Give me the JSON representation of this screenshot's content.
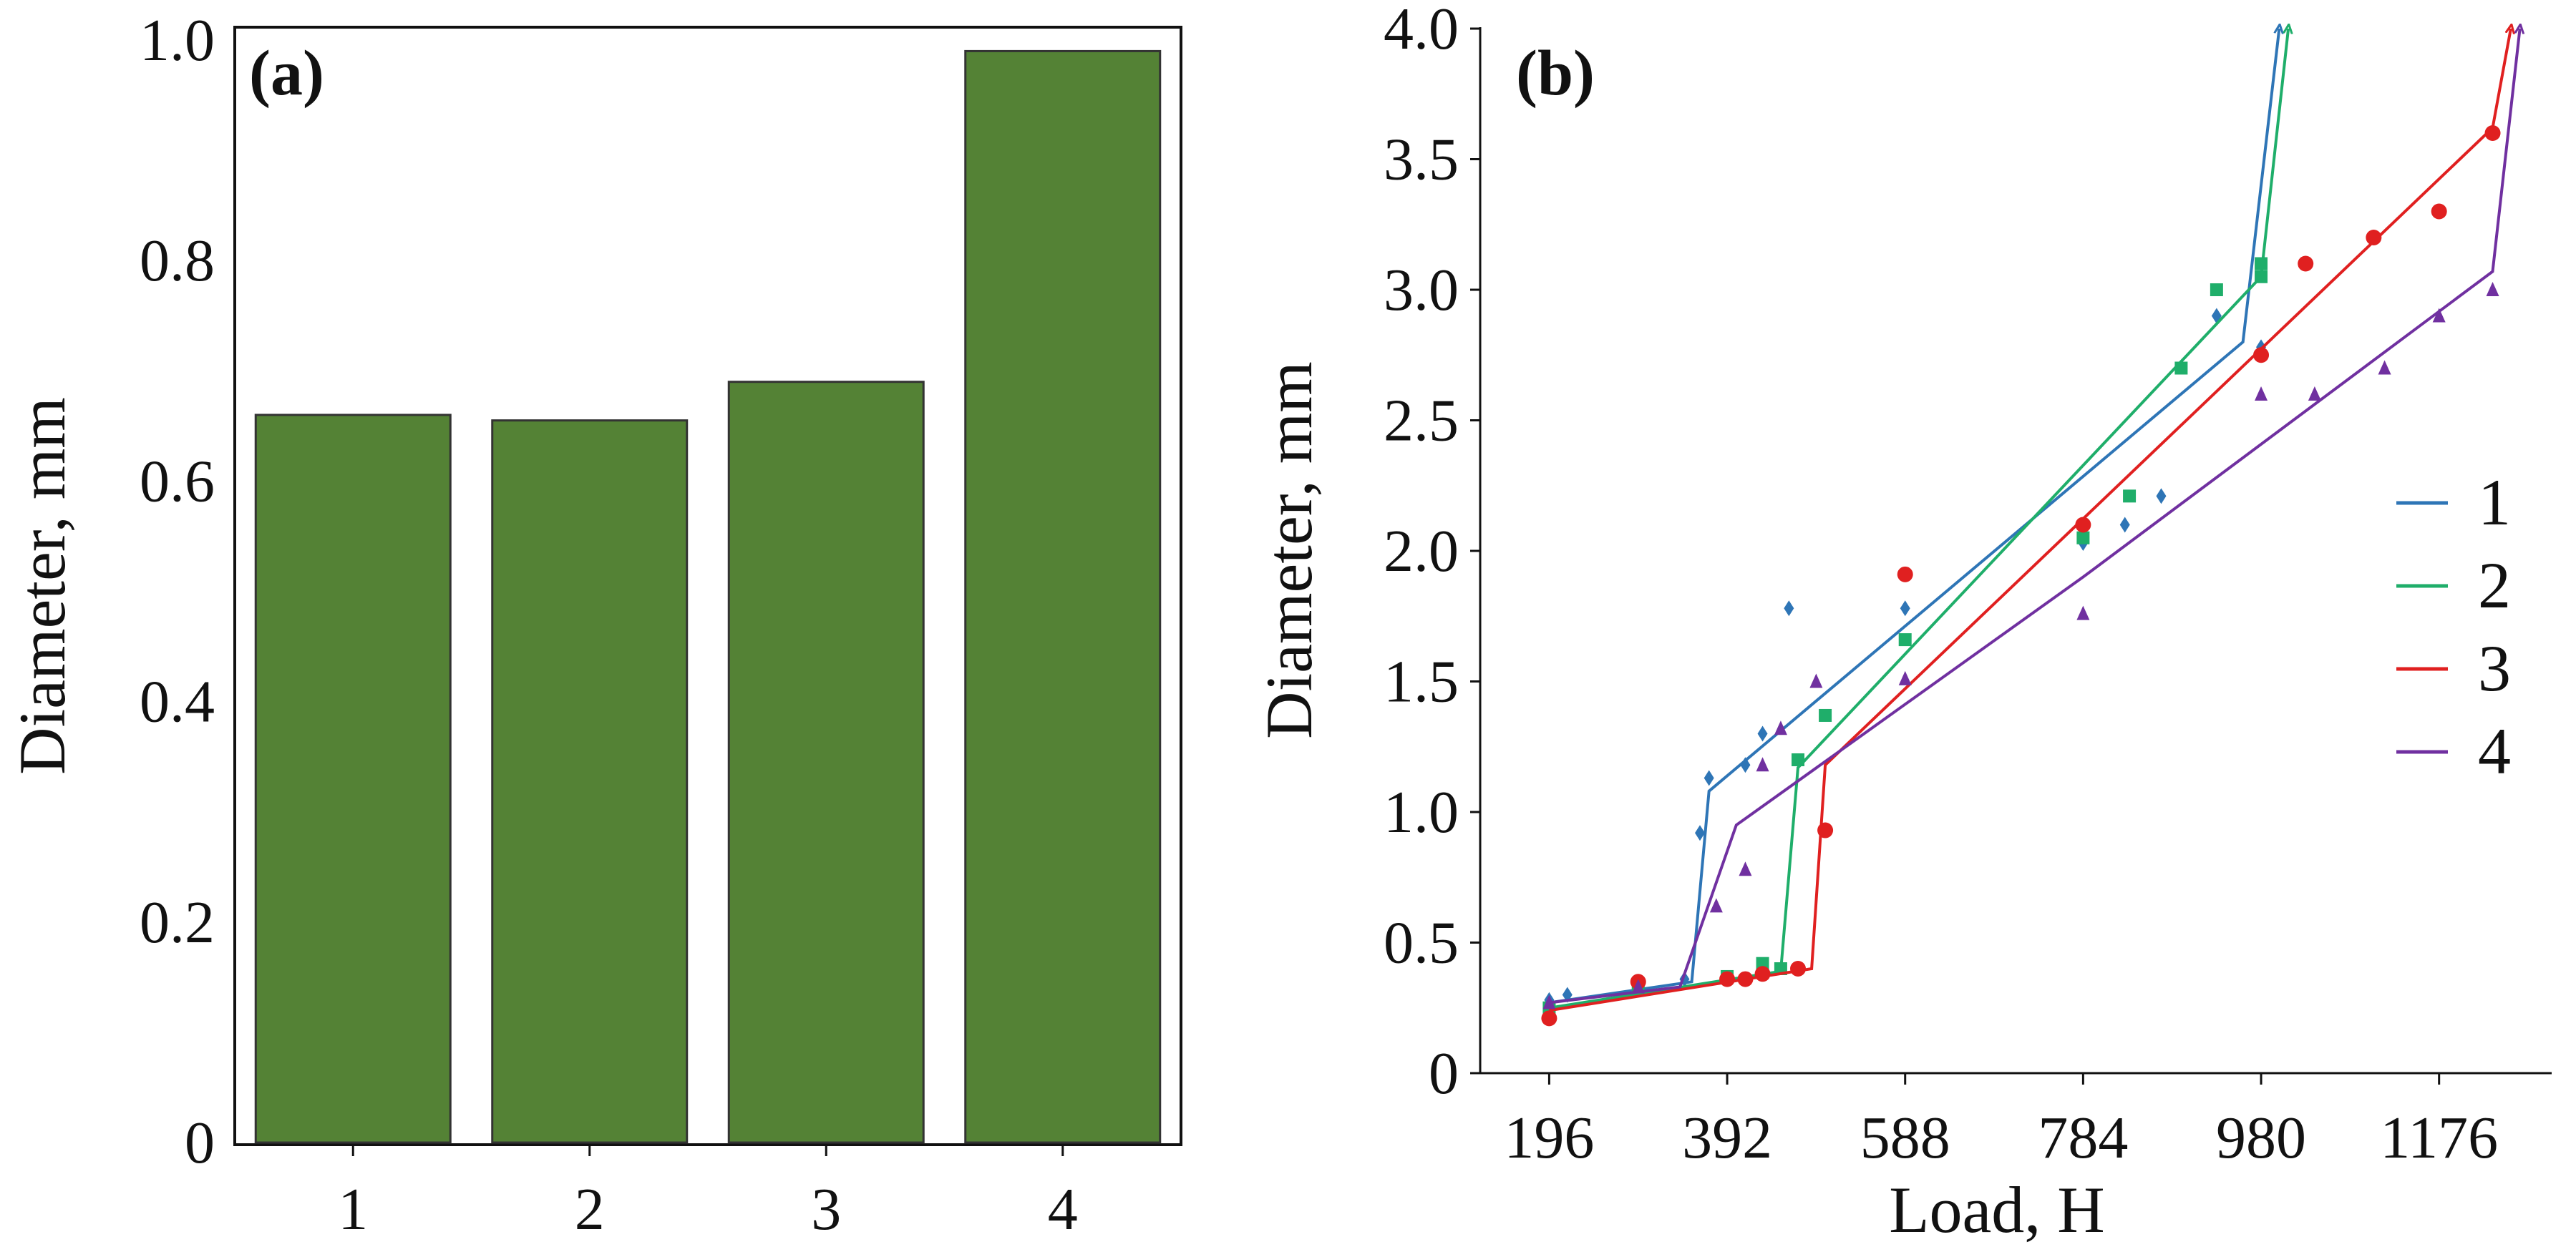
{
  "colors": {
    "bar_fill": "#548235",
    "bar_stroke": "#333333",
    "series": [
      "#2e75b6",
      "#1fae6a",
      "#e02020",
      "#7030a0"
    ]
  },
  "chart_data": [
    {
      "panel": "(a)",
      "type": "bar",
      "categories": [
        "1",
        "2",
        "3",
        "4"
      ],
      "values": [
        0.66,
        0.655,
        0.69,
        0.99
      ],
      "ylabel": "Diameter, mm",
      "xlabel": "",
      "ylim": [
        0,
        1.0
      ],
      "yticks": [
        0,
        0.2,
        0.4,
        0.6,
        0.8,
        1.0
      ],
      "ytick_labels": [
        "0",
        "0.2",
        "0.4",
        "0.6",
        "0.8",
        "1.0"
      ],
      "grid": false
    },
    {
      "panel": "(b)",
      "type": "line",
      "xlabel": "Load, H",
      "ylabel": "Diameter, mm",
      "xlim": [
        120,
        1300
      ],
      "ylim": [
        0,
        4.0
      ],
      "xticks": [
        196,
        392,
        588,
        784,
        980,
        1176
      ],
      "xtick_labels": [
        "196",
        "392",
        "588",
        "784",
        "980",
        "1176"
      ],
      "yticks": [
        0,
        0.5,
        1.0,
        1.5,
        2.0,
        2.5,
        3.0,
        3.5,
        4.0
      ],
      "ytick_labels": [
        "0",
        "0.5",
        "1.0",
        "1.5",
        "2.0",
        "2.5",
        "3.0",
        "3.5",
        "4.0"
      ],
      "legend_position": "right",
      "grid": false,
      "series": [
        {
          "name": "1",
          "marker": "diamond",
          "points": [
            [
              196,
              0.28
            ],
            [
              216,
              0.3
            ],
            [
              294,
              0.33
            ],
            [
              345,
              0.36
            ],
            [
              362,
              0.92
            ],
            [
              372,
              1.13
            ],
            [
              412,
              1.18
            ],
            [
              431,
              1.3
            ],
            [
              460,
              1.78
            ],
            [
              588,
              1.78
            ],
            [
              784,
              2.03
            ],
            [
              830,
              2.1
            ],
            [
              870,
              2.21
            ],
            [
              931,
              2.9
            ],
            [
              980,
              2.78
            ]
          ],
          "fit": [
            [
              196,
              0.27
            ],
            [
              353,
              0.35
            ],
            [
              372,
              1.08
            ],
            [
              960,
              2.8
            ],
            [
              1000,
              4.0
            ]
          ]
        },
        {
          "name": "2",
          "marker": "square",
          "points": [
            [
              196,
              0.25
            ],
            [
              294,
              0.33
            ],
            [
              392,
              0.37
            ],
            [
              431,
              0.42
            ],
            [
              451,
              0.4
            ],
            [
              470,
              1.2
            ],
            [
              500,
              1.37
            ],
            [
              588,
              1.66
            ],
            [
              784,
              2.05
            ],
            [
              835,
              2.21
            ],
            [
              892,
              2.7
            ],
            [
              931,
              3.0
            ],
            [
              980,
              3.1
            ],
            [
              980,
              3.05
            ]
          ],
          "fit": [
            [
              196,
              0.25
            ],
            [
              451,
              0.39
            ],
            [
              470,
              1.17
            ],
            [
              980,
              3.05
            ],
            [
              1010,
              4.0
            ]
          ]
        },
        {
          "name": "3",
          "marker": "circle",
          "points": [
            [
              196,
              0.21
            ],
            [
              294,
              0.35
            ],
            [
              392,
              0.36
            ],
            [
              412,
              0.36
            ],
            [
              431,
              0.38
            ],
            [
              470,
              0.4
            ],
            [
              500,
              0.93
            ],
            [
              588,
              1.91
            ],
            [
              784,
              2.1
            ],
            [
              980,
              2.75
            ],
            [
              1029,
              3.1
            ],
            [
              1104,
              3.2
            ],
            [
              1176,
              3.3
            ],
            [
              1235,
              3.6
            ]
          ],
          "fit": [
            [
              196,
              0.24
            ],
            [
              485,
              0.4
            ],
            [
              500,
              1.18
            ],
            [
              1235,
              3.62
            ],
            [
              1255,
              4.0
            ]
          ]
        },
        {
          "name": "4",
          "marker": "triangle",
          "points": [
            [
              196,
              0.27
            ],
            [
              294,
              0.33
            ],
            [
              380,
              0.64
            ],
            [
              412,
              0.78
            ],
            [
              431,
              1.18
            ],
            [
              451,
              1.32
            ],
            [
              490,
              1.5
            ],
            [
              588,
              1.51
            ],
            [
              784,
              1.76
            ],
            [
              980,
              2.6
            ],
            [
              1039,
              2.6
            ],
            [
              1116,
              2.7
            ],
            [
              1176,
              2.9
            ],
            [
              1235,
              3.0
            ]
          ],
          "fit": [
            [
              196,
              0.27
            ],
            [
              340,
              0.33
            ],
            [
              402,
              0.95
            ],
            [
              784,
              1.9
            ],
            [
              1235,
              3.07
            ],
            [
              1265,
              4.0
            ]
          ]
        }
      ]
    }
  ]
}
